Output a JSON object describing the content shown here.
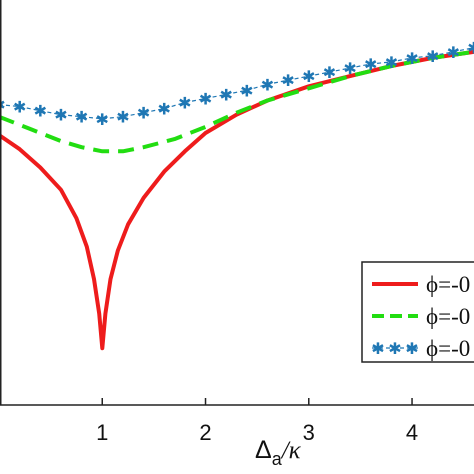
{
  "chart_data": {
    "type": "line",
    "title": "",
    "xlabel_main": "Δ",
    "xlabel_sub": "a",
    "xlabel_tail": "/κ",
    "ylabel": "",
    "xlim": [
      0,
      4.6
    ],
    "ylim": [
      -1.0,
      1.0
    ],
    "x_ticks": [
      1,
      2,
      3,
      4
    ],
    "x_tick_labels": [
      "1",
      "2",
      "3",
      "4"
    ],
    "grid": false,
    "legend_position": "bottom-right",
    "series": [
      {
        "name": "ϕ=-0",
        "color": "#ee1c1c",
        "style": "solid",
        "points": [
          [
            0,
            0.33
          ],
          [
            0.2,
            0.26
          ],
          [
            0.4,
            0.17
          ],
          [
            0.6,
            0.06
          ],
          [
            0.75,
            -0.08
          ],
          [
            0.85,
            -0.22
          ],
          [
            0.92,
            -0.38
          ],
          [
            0.97,
            -0.55
          ],
          [
            1.0,
            -0.72
          ],
          [
            1.03,
            -0.55
          ],
          [
            1.08,
            -0.38
          ],
          [
            1.15,
            -0.24
          ],
          [
            1.25,
            -0.11
          ],
          [
            1.4,
            0.02
          ],
          [
            1.6,
            0.15
          ],
          [
            1.8,
            0.25
          ],
          [
            2.0,
            0.34
          ],
          [
            2.3,
            0.43
          ],
          [
            2.6,
            0.5
          ],
          [
            3.0,
            0.57
          ],
          [
            3.4,
            0.62
          ],
          [
            3.8,
            0.67
          ],
          [
            4.2,
            0.71
          ],
          [
            4.6,
            0.74
          ]
        ]
      },
      {
        "name": "ϕ=-0",
        "color": "#22dd11",
        "style": "dashed",
        "points": [
          [
            0,
            0.42
          ],
          [
            0.3,
            0.36
          ],
          [
            0.6,
            0.3
          ],
          [
            0.8,
            0.27
          ],
          [
            1.0,
            0.25
          ],
          [
            1.2,
            0.25
          ],
          [
            1.4,
            0.27
          ],
          [
            1.7,
            0.31
          ],
          [
            2.0,
            0.37
          ],
          [
            2.3,
            0.44
          ],
          [
            2.6,
            0.5
          ],
          [
            3.0,
            0.56
          ],
          [
            3.4,
            0.62
          ],
          [
            3.8,
            0.67
          ],
          [
            4.2,
            0.71
          ],
          [
            4.6,
            0.74
          ]
        ]
      },
      {
        "name": "ϕ=-0",
        "color": "#1f77b4",
        "style": "dash-dot-star",
        "points": [
          [
            0,
            0.48
          ],
          [
            0.2,
            0.47
          ],
          [
            0.4,
            0.45
          ],
          [
            0.6,
            0.43
          ],
          [
            0.8,
            0.42
          ],
          [
            1.0,
            0.41
          ],
          [
            1.2,
            0.42
          ],
          [
            1.4,
            0.44
          ],
          [
            1.6,
            0.46
          ],
          [
            1.8,
            0.49
          ],
          [
            2.0,
            0.51
          ],
          [
            2.2,
            0.53
          ],
          [
            2.4,
            0.55
          ],
          [
            2.6,
            0.58
          ],
          [
            2.8,
            0.6
          ],
          [
            3.0,
            0.62
          ],
          [
            3.2,
            0.64
          ],
          [
            3.4,
            0.66
          ],
          [
            3.6,
            0.68
          ],
          [
            3.8,
            0.69
          ],
          [
            4.0,
            0.71
          ],
          [
            4.2,
            0.72
          ],
          [
            4.4,
            0.74
          ],
          [
            4.6,
            0.76
          ]
        ]
      }
    ]
  }
}
